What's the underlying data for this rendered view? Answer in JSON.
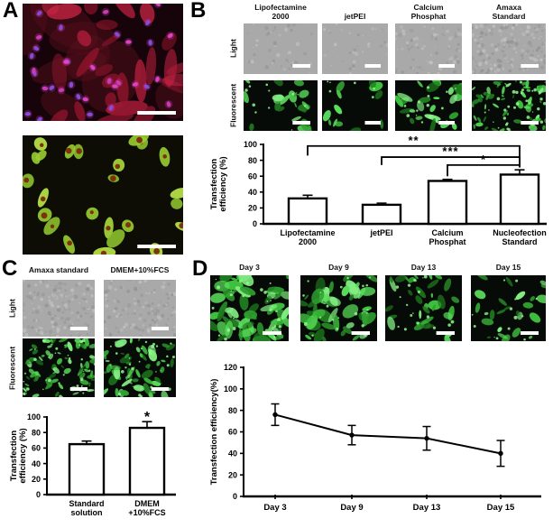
{
  "colors": {
    "fluorescent_green": "#3fc43f",
    "stain_red": "#b21d3a",
    "nuclei_magenta": "#e145c9",
    "light_micrograph_gray": "#a9a9a9",
    "scale_bar": "#ffffff"
  },
  "panels": {
    "A": {
      "label": "A",
      "images": [
        {
          "name": "immunofluorescence-red-cells-magenta-nuclei",
          "kind": "red",
          "density": 26,
          "seed": 7,
          "scale_bar": true
        },
        {
          "name": "green-cells-red-nuclei",
          "kind": "greenred",
          "density": 24,
          "seed": 13,
          "scale_bar": true
        }
      ]
    },
    "B": {
      "label": "B",
      "col_headers": [
        "Lipofectamine 2000",
        "jetPEI",
        "Calcium Phosphat",
        "Amaxa Standard"
      ],
      "row_labels": [
        "Light",
        "Fluorescent"
      ],
      "light_images": [
        {
          "kind": "light",
          "density": 16,
          "seed": 21,
          "scale_bar": true
        },
        {
          "kind": "light",
          "density": 12,
          "seed": 22,
          "scale_bar": true
        },
        {
          "kind": "light",
          "density": 28,
          "seed": 23,
          "scale_bar": true
        },
        {
          "kind": "light",
          "density": 60,
          "seed": 24,
          "scale_bar": true
        }
      ],
      "fluor_images": [
        {
          "kind": "gfp",
          "density": 22,
          "scale": 1.0,
          "seed": 31,
          "scale_bar": true
        },
        {
          "kind": "gfp",
          "density": 12,
          "scale": 1.1,
          "seed": 32,
          "scale_bar": true
        },
        {
          "kind": "gfp",
          "density": 26,
          "scale": 1.3,
          "seed": 33,
          "scale_bar": true
        },
        {
          "kind": "gfp",
          "density": 62,
          "scale": 0.7,
          "seed": 34,
          "scale_bar": true
        }
      ]
    },
    "C": {
      "label": "C",
      "col_headers": [
        "Amaxa standard",
        "DMEM+10%FCS"
      ],
      "row_labels": [
        "Light",
        "Fluorescent"
      ],
      "light_images": [
        {
          "kind": "light",
          "density": 55,
          "seed": 41,
          "scale_bar": true
        },
        {
          "kind": "light",
          "density": 45,
          "seed": 42,
          "scale_bar": true
        }
      ],
      "fluor_images": [
        {
          "kind": "gfp",
          "density": 75,
          "scale": 0.8,
          "seed": 51,
          "scale_bar": true
        },
        {
          "kind": "gfp",
          "density": 55,
          "scale": 1.0,
          "seed": 52,
          "scale_bar": true
        }
      ]
    },
    "D": {
      "label": "D",
      "col_headers": [
        "Day 3",
        "Day 9",
        "Day 13",
        "Day 15"
      ],
      "images": [
        {
          "kind": "gfp",
          "density": 60,
          "scale": 1.5,
          "seed": 61,
          "scale_bar": true
        },
        {
          "kind": "gfp",
          "density": 46,
          "scale": 1.35,
          "seed": 62,
          "scale_bar": true
        },
        {
          "kind": "gfp",
          "density": 34,
          "scale": 1.15,
          "seed": 63,
          "scale_bar": true
        },
        {
          "kind": "gfp",
          "density": 25,
          "scale": 1.0,
          "seed": 64,
          "scale_bar": true
        }
      ]
    }
  },
  "chart_data": [
    {
      "id": "chart-b",
      "type": "bar",
      "title": "",
      "xlabel": "",
      "ylabel": "Transfection efficiency (%)",
      "ylabel_lines": [
        "Transfection",
        "efficiency (%)"
      ],
      "categories": [
        "Lipofectamine\n2000",
        "jetPEI",
        "Calcium\nPhosphat",
        "Nucleofection\nStandard"
      ],
      "values": [
        32,
        24,
        54,
        62
      ],
      "errors": [
        4,
        2,
        2,
        6
      ],
      "ylim": [
        0,
        100
      ],
      "yticks": [
        0,
        20,
        40,
        60,
        80,
        100
      ],
      "grid": false,
      "brackets": [
        {
          "label": "**",
          "from": 0,
          "to": 3,
          "level": 98,
          "left_end": 86,
          "right_end": 71
        },
        {
          "label": "***",
          "from": 1,
          "to": 3,
          "level": 84,
          "left_end": 74,
          "right_end": 71
        },
        {
          "label": "*",
          "from": 2,
          "to": 3,
          "level": 74,
          "left_end": 60,
          "right_end": 71
        }
      ],
      "stars": []
    },
    {
      "id": "chart-c",
      "type": "bar",
      "title": "",
      "xlabel": "",
      "ylabel": "Transfection efficiency (%)",
      "ylabel_lines": [
        "Transfection",
        "efficiency (%)"
      ],
      "categories": [
        "Standard\nsolution",
        "DMEM\n+10%FCS"
      ],
      "values": [
        65,
        86
      ],
      "errors": [
        4,
        8
      ],
      "ylim": [
        0,
        100
      ],
      "yticks": [
        0,
        20,
        40,
        60,
        80,
        100
      ],
      "grid": false,
      "brackets": [],
      "stars": [
        {
          "bar": 1,
          "label": "*",
          "value": 99
        }
      ]
    },
    {
      "id": "chart-d",
      "type": "line",
      "title": "",
      "xlabel": "",
      "ylabel": "Transfection efficiency(%)",
      "ylabel_lines": [
        "Transfection efficiency(%)"
      ],
      "categories": [
        "Day 3",
        "Day 9",
        "Day 13",
        "Day 15"
      ],
      "values": [
        76,
        57,
        54,
        40
      ],
      "errors": [
        10,
        9,
        11,
        12
      ],
      "ylim": [
        0,
        120
      ],
      "yticks": [
        0,
        20,
        40,
        60,
        80,
        100,
        120
      ],
      "grid": false
    }
  ]
}
